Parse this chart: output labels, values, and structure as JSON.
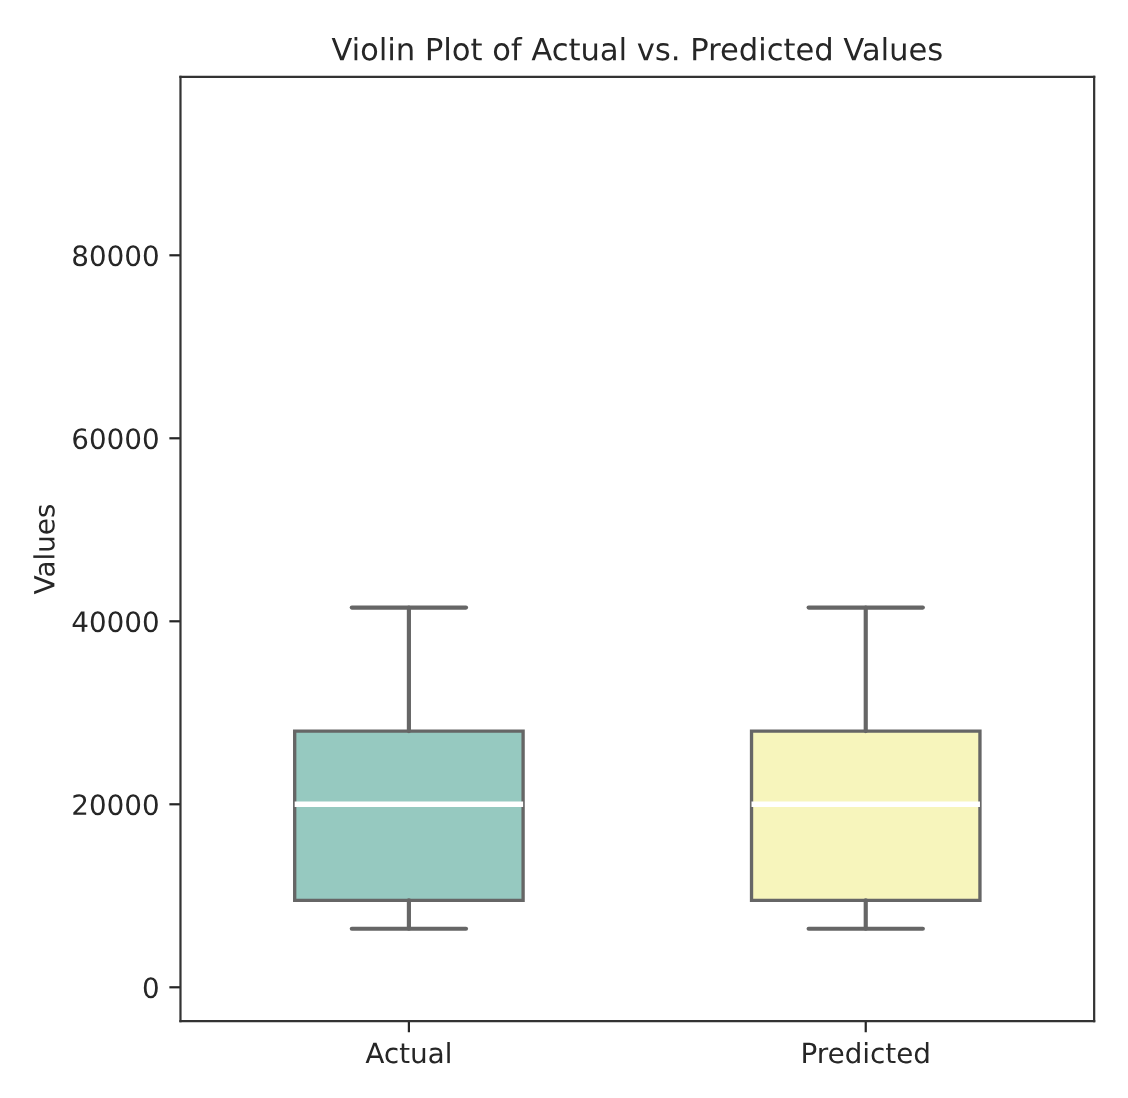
{
  "chart_data": {
    "type": "box",
    "title": "Violin Plot of Actual vs. Predicted Values",
    "ylabel": "Values",
    "categories": [
      "Actual",
      "Predicted"
    ],
    "colors": [
      "#96c9c0",
      "#f7f5bc"
    ],
    "boxes": [
      {
        "low": 6400,
        "q1": 9500,
        "median": 20000,
        "q3": 28000,
        "high": 41500
      },
      {
        "low": 6400,
        "q1": 9500,
        "median": 20000,
        "q3": 28000,
        "high": 41500
      }
    ],
    "ylim": [
      -3700,
      99500
    ],
    "yticks": [
      0,
      20000,
      40000,
      60000,
      80000
    ],
    "grid": false
  }
}
